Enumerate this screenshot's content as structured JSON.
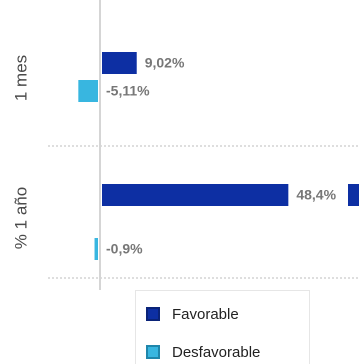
{
  "chart_data": {
    "type": "bar",
    "orientation": "horizontal",
    "categories": [
      "1 mes",
      "% 1 año"
    ],
    "series": [
      {
        "name": "Favorable",
        "values": [
          9.02,
          48.4
        ],
        "labels": [
          "9,02%",
          "48,4%"
        ]
      },
      {
        "name": "Desfavorable",
        "values": [
          -5.11,
          -0.9
        ],
        "labels": [
          "-5,11%",
          "-0,9%"
        ]
      }
    ],
    "legend_position": "bottom",
    "grid": false
  },
  "colors": {
    "favorable": "#0d2fa3",
    "desfavorable": "#38b6e0",
    "separator": "#bcbcbc",
    "axis": "#d5d5d5"
  }
}
